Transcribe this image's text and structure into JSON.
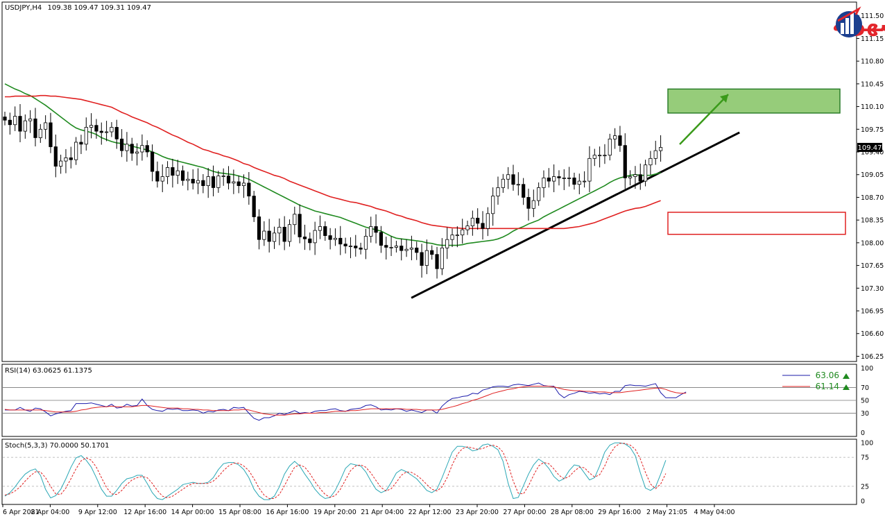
{
  "header": {
    "symbol_label": "USDJPY,H4",
    "ohlc": "109.38 109.47 109.31 109.47"
  },
  "logo": {
    "text": "التداول بسهولة",
    "colors": [
      "#e3262c",
      "#1b3f8f"
    ]
  },
  "colors": {
    "bull": "#ffffff",
    "bear": "#000000",
    "ma_fast": "#1f8a1f",
    "ma_slow": "#e02020",
    "trendline": "#000000",
    "target_fill": "#96cc7a",
    "target_border": "#2a7d2a",
    "support_border": "#e02020",
    "arrow": "#3a9a1a",
    "rsi_line": "#1a1aaa",
    "rsi_signal": "#e02020",
    "stoch_main": "#2aa7b5",
    "stoch_signal": "#e02020"
  },
  "chart_data": [
    {
      "type": "candlestick",
      "symbol": "USDJPY",
      "timeframe": "H4",
      "current_price": "109.47",
      "ylim": [
        106.18,
        111.7
      ],
      "y_ticks": [
        "111.50",
        "111.15",
        "110.80",
        "110.45",
        "110.10",
        "109.75",
        "109.40",
        "109.05",
        "108.70",
        "108.35",
        "108.00",
        "107.65",
        "107.30",
        "106.95",
        "106.60",
        "106.25"
      ],
      "x_labels": [
        "6 Apr 2021",
        "8 Apr 04:00",
        "9 Apr 12:00",
        "12 Apr 16:00",
        "14 Apr 00:00",
        "15 Apr 08:00",
        "16 Apr 16:00",
        "19 Apr 20:00",
        "21 Apr 04:00",
        "22 Apr 12:00",
        "23 Apr 20:00",
        "27 Apr 00:00",
        "28 Apr 08:00",
        "29 Apr 16:00",
        "2 May 21:05",
        "4 May 04:00"
      ],
      "closes": [
        109.89,
        109.82,
        109.95,
        109.72,
        109.88,
        109.91,
        109.62,
        109.75,
        109.85,
        109.48,
        109.18,
        109.26,
        109.31,
        109.28,
        109.55,
        109.52,
        109.78,
        109.81,
        109.72,
        109.7,
        109.71,
        109.78,
        109.6,
        109.42,
        109.52,
        109.38,
        109.4,
        109.5,
        109.4,
        109.1,
        108.95,
        109.02,
        109.16,
        109.04,
        109.11,
        108.96,
        108.98,
        108.92,
        108.96,
        108.88,
        109.02,
        108.85,
        109.03,
        109.03,
        108.92,
        108.94,
        108.88,
        108.92,
        108.72,
        108.4,
        108.05,
        108.18,
        108.02,
        108.15,
        108.24,
        108.02,
        108.28,
        108.44,
        108.09,
        108.06,
        108.0,
        108.19,
        108.25,
        108.11,
        108.05,
        108.07,
        107.98,
        107.95,
        107.95,
        107.92,
        107.9,
        108.1,
        108.25,
        108.16,
        107.96,
        107.93,
        107.93,
        107.95,
        107.88,
        107.9,
        107.92,
        107.85,
        107.65,
        107.88,
        107.82,
        107.6,
        107.92,
        108.05,
        108.12,
        108.12,
        108.2,
        108.26,
        108.38,
        108.3,
        108.22,
        108.45,
        108.72,
        108.85,
        108.98,
        109.05,
        108.9,
        108.9,
        108.7,
        108.53,
        108.65,
        108.85,
        109.0,
        108.95,
        109.02,
        109.0,
        109.0,
        109.0,
        108.9,
        108.95,
        108.95,
        109.3,
        109.35,
        109.35,
        109.35,
        109.6,
        109.65,
        109.5,
        109.0,
        109.02,
        109.05,
        108.95,
        109.2,
        109.3,
        109.42,
        109.47
      ],
      "series": [
        {
          "name": "",
          "color": "#1f8a1f",
          "values": [
            110.45,
            110.41,
            110.37,
            110.34,
            110.3,
            110.27,
            110.22,
            110.17,
            110.12,
            110.06,
            110.0,
            109.94,
            109.88,
            109.82,
            109.77,
            109.74,
            109.72,
            109.7,
            109.67,
            109.62,
            109.59,
            109.56,
            109.54,
            109.53,
            109.51,
            109.49,
            109.47,
            109.45,
            109.43,
            109.4,
            109.37,
            109.33,
            109.3,
            109.28,
            109.26,
            109.24,
            109.22,
            109.2,
            109.18,
            109.16,
            109.13,
            109.1,
            109.08,
            109.07,
            109.06,
            109.05,
            109.03,
            109.01,
            108.98,
            108.94,
            108.9,
            108.86,
            108.82,
            108.78,
            108.74,
            108.7,
            108.66,
            108.62,
            108.58,
            108.55,
            108.52,
            108.49,
            108.47,
            108.45,
            108.43,
            108.41,
            108.39,
            108.36,
            108.33,
            108.3,
            108.27,
            108.24,
            108.22,
            108.2,
            108.18,
            108.14,
            108.1,
            108.07,
            108.06,
            108.05,
            108.04,
            108.03,
            108.02,
            108.0,
            107.99,
            107.97,
            107.96,
            107.96,
            107.96,
            107.96,
            107.97,
            107.99,
            108.0,
            108.01,
            108.02,
            108.03,
            108.04,
            108.06,
            108.09,
            108.13,
            108.18,
            108.22,
            108.25,
            108.29,
            108.32,
            108.35,
            108.4,
            108.44,
            108.48,
            108.52,
            108.56,
            108.6,
            108.64,
            108.68,
            108.72,
            108.76,
            108.8,
            108.84,
            108.88,
            108.93,
            108.97,
            109.0,
            109.02,
            109.04,
            109.05,
            109.04,
            109.04,
            109.04,
            109.06,
            109.08
          ]
        },
        {
          "name": "",
          "color": "#e02020",
          "values": [
            110.25,
            110.25,
            110.26,
            110.26,
            110.26,
            110.26,
            110.26,
            110.27,
            110.27,
            110.26,
            110.26,
            110.25,
            110.24,
            110.23,
            110.22,
            110.21,
            110.19,
            110.17,
            110.15,
            110.13,
            110.11,
            110.09,
            110.05,
            110.01,
            109.98,
            109.94,
            109.91,
            109.88,
            109.85,
            109.81,
            109.78,
            109.74,
            109.7,
            109.66,
            109.63,
            109.59,
            109.55,
            109.52,
            109.48,
            109.44,
            109.42,
            109.39,
            109.37,
            109.34,
            109.32,
            109.29,
            109.26,
            109.22,
            109.2,
            109.16,
            109.13,
            109.1,
            109.07,
            109.04,
            109.02,
            108.99,
            108.95,
            108.92,
            108.89,
            108.86,
            108.83,
            108.8,
            108.77,
            108.74,
            108.71,
            108.69,
            108.67,
            108.65,
            108.63,
            108.62,
            108.6,
            108.58,
            108.56,
            108.53,
            108.51,
            108.49,
            108.46,
            108.43,
            108.41,
            108.38,
            108.36,
            108.34,
            108.31,
            108.29,
            108.27,
            108.26,
            108.25,
            108.24,
            108.23,
            108.23,
            108.22,
            108.22,
            108.22,
            108.22,
            108.22,
            108.22,
            108.22,
            108.22,
            108.22,
            108.22,
            108.22,
            108.22,
            108.22,
            108.22,
            108.22,
            108.22,
            108.22,
            108.22,
            108.22,
            108.22,
            108.22,
            108.23,
            108.24,
            108.25,
            108.27,
            108.29,
            108.31,
            108.34,
            108.37,
            108.4,
            108.43,
            108.46,
            108.49,
            108.51,
            108.53,
            108.54,
            108.56,
            108.59,
            108.62,
            108.65
          ]
        }
      ],
      "annotations": {
        "target_zone": [
          110.0,
          110.37
        ],
        "support_zone": [
          108.13,
          108.47
        ],
        "trendline": {
          "from_bar": 70,
          "from_value": 107.15,
          "to_bar": 134,
          "to_value": 109.7
        }
      }
    },
    {
      "type": "line",
      "title": "RSI(14) 63.0625 61.1375",
      "ylim": [
        -5,
        105
      ],
      "y_ticks": [
        "100",
        "70",
        "50",
        "30",
        "0"
      ],
      "levels": [
        70,
        50,
        30
      ],
      "legend_values": [
        "63.06",
        "61.14"
      ],
      "series": [
        {
          "name": "",
          "color": "#1a1aaa",
          "values": [
            35,
            35,
            35,
            39,
            35,
            33,
            38,
            37,
            32,
            26,
            29,
            31,
            33,
            34,
            45,
            45,
            45,
            46,
            44,
            42,
            40,
            44,
            38,
            39,
            44,
            41,
            42,
            52,
            42,
            36,
            34,
            33,
            37,
            36,
            37,
            34,
            34,
            35,
            34,
            30,
            33,
            32,
            35,
            36,
            34,
            39,
            38,
            39,
            30,
            22,
            19,
            23,
            23,
            26,
            30,
            28,
            31,
            34,
            30,
            31,
            30,
            33,
            34,
            34,
            36,
            37,
            34,
            33,
            36,
            37,
            38,
            42,
            43,
            40,
            35,
            36,
            35,
            37,
            36,
            33,
            35,
            33,
            31,
            35,
            35,
            30,
            41,
            48,
            53,
            54,
            56,
            57,
            61,
            60,
            66,
            68,
            71,
            72,
            72,
            71,
            74,
            75,
            74,
            73,
            75,
            77,
            73,
            72,
            72,
            60,
            54,
            59,
            61,
            64,
            63,
            61,
            62,
            60,
            61,
            59,
            64,
            64,
            73,
            74,
            73,
            73,
            72,
            74,
            76,
            62,
            54,
            54,
            54,
            59,
            63
          ]
        },
        {
          "name": "",
          "color": "#e02020",
          "values": [
            36,
            35,
            35,
            35,
            35,
            35,
            35,
            35,
            34,
            33,
            32,
            32,
            32,
            32,
            33,
            35,
            36,
            38,
            39,
            40,
            40,
            41,
            40,
            40,
            40,
            40,
            41,
            42,
            42,
            41,
            40,
            39,
            38,
            38,
            38,
            37,
            37,
            36,
            36,
            35,
            35,
            34,
            34,
            34,
            34,
            35,
            35,
            36,
            35,
            33,
            31,
            29,
            28,
            27,
            27,
            27,
            28,
            29,
            29,
            30,
            30,
            30,
            31,
            31,
            32,
            33,
            33,
            33,
            34,
            34,
            35,
            36,
            37,
            37,
            37,
            37,
            37,
            37,
            37,
            36,
            36,
            36,
            35,
            35,
            35,
            35,
            36,
            38,
            40,
            42,
            45,
            47,
            50,
            52,
            55,
            58,
            61,
            63,
            65,
            67,
            68,
            70,
            71,
            72,
            72,
            72,
            72,
            72,
            71,
            69,
            67,
            66,
            65,
            65,
            64,
            64,
            63,
            63,
            63,
            62,
            62,
            62,
            63,
            64,
            65,
            66,
            67,
            68,
            69,
            69,
            67,
            64,
            62,
            61,
            61
          ]
        }
      ]
    },
    {
      "type": "line",
      "title": "Stoch(5,3,3) 70.0000 50.1701",
      "ylim": [
        -5,
        105
      ],
      "y_ticks": [
        "100",
        "75",
        "25",
        "0"
      ],
      "levels": [
        75,
        25
      ],
      "series": [
        {
          "name": "",
          "color": "#2aa7b5",
          "values": [
            8,
            14,
            24,
            36,
            46,
            52,
            55,
            44,
            20,
            5,
            9,
            20,
            38,
            58,
            74,
            78,
            70,
            58,
            40,
            20,
            8,
            8,
            18,
            30,
            38,
            40,
            44,
            44,
            30,
            14,
            4,
            2,
            8,
            14,
            20,
            28,
            30,
            32,
            30,
            30,
            32,
            40,
            54,
            64,
            66,
            66,
            62,
            54,
            40,
            20,
            8,
            2,
            2,
            8,
            24,
            46,
            60,
            68,
            60,
            46,
            34,
            20,
            10,
            4,
            6,
            18,
            36,
            56,
            64,
            62,
            60,
            50,
            34,
            20,
            14,
            18,
            32,
            48,
            54,
            50,
            44,
            38,
            28,
            18,
            14,
            20,
            40,
            62,
            84,
            94,
            94,
            92,
            86,
            88,
            96,
            98,
            94,
            88,
            68,
            30,
            4,
            6,
            26,
            46,
            62,
            72,
            66,
            56,
            42,
            34,
            38,
            52,
            62,
            60,
            48,
            36,
            40,
            60,
            84,
            96,
            100,
            100,
            98,
            92,
            78,
            48,
            22,
            18,
            24,
            46,
            70
          ]
        },
        {
          "name": "",
          "color": "#e02020",
          "values": [
            10,
            12,
            17,
            24,
            34,
            43,
            50,
            50,
            40,
            25,
            12,
            11,
            22,
            38,
            55,
            69,
            74,
            70,
            58,
            40,
            23,
            12,
            11,
            18,
            28,
            36,
            40,
            42,
            40,
            30,
            18,
            8,
            5,
            8,
            14,
            20,
            26,
            30,
            30,
            30,
            30,
            34,
            42,
            52,
            60,
            65,
            65,
            60,
            52,
            38,
            22,
            10,
            4,
            4,
            11,
            26,
            43,
            58,
            62,
            58,
            47,
            33,
            21,
            11,
            6,
            9,
            20,
            36,
            52,
            60,
            62,
            58,
            48,
            35,
            23,
            17,
            21,
            32,
            44,
            50,
            49,
            44,
            37,
            28,
            20,
            17,
            24,
            40,
            62,
            80,
            90,
            93,
            91,
            89,
            90,
            94,
            96,
            93,
            84,
            62,
            34,
            13,
            12,
            26,
            44,
            60,
            66,
            64,
            55,
            44,
            38,
            42,
            51,
            58,
            57,
            48,
            41,
            45,
            60,
            80,
            93,
            99,
            99,
            96,
            89,
            72,
            49,
            29,
            21,
            29,
            47
          ]
        }
      ]
    }
  ]
}
